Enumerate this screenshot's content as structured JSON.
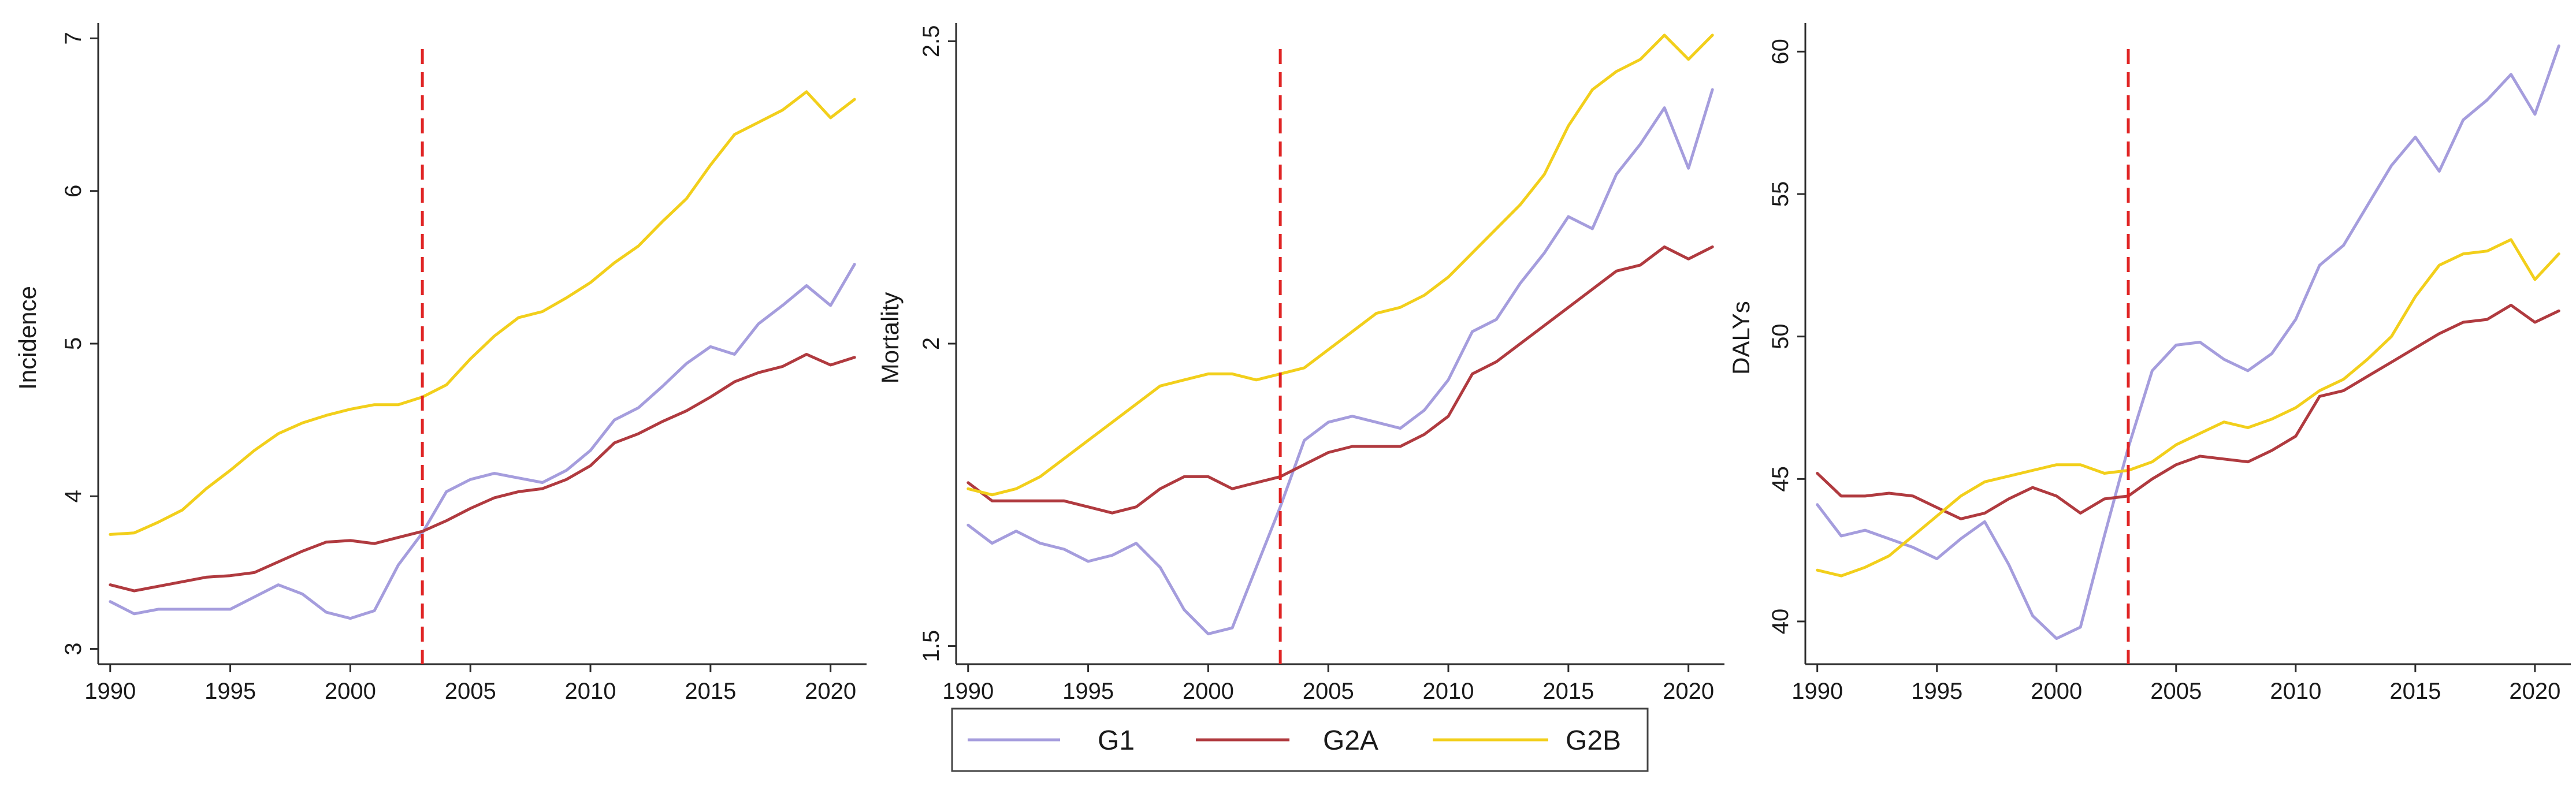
{
  "chart_data": [
    {
      "type": "line",
      "ylabel": "Incidence",
      "xlabel": "",
      "x": [
        1990,
        1991,
        1992,
        1993,
        1994,
        1995,
        1996,
        1997,
        1998,
        1999,
        2000,
        2001,
        2002,
        2003,
        2004,
        2005,
        2006,
        2007,
        2008,
        2009,
        2010,
        2011,
        2012,
        2013,
        2014,
        2015,
        2016,
        2017,
        2018,
        2019,
        2020,
        2021
      ],
      "xlim": [
        1989.5,
        2021.5
      ],
      "ylim": [
        2.9,
        7.1
      ],
      "xticks": [
        "1990",
        "1995",
        "2000",
        "2005",
        "2010",
        "2015",
        "2020"
      ],
      "yticks": [
        "3",
        "4",
        "5",
        "6",
        "7"
      ],
      "vline_x": 2003,
      "series": [
        {
          "name": "G1",
          "values": [
            3.31,
            3.23,
            3.26,
            3.26,
            3.26,
            3.26,
            3.34,
            3.42,
            3.36,
            3.24,
            3.2,
            3.25,
            3.55,
            3.76,
            4.03,
            4.11,
            4.15,
            4.12,
            4.09,
            4.17,
            4.3,
            4.5,
            4.58,
            4.72,
            4.87,
            4.98,
            4.93,
            5.13,
            5.25,
            5.38,
            5.25,
            5.52
          ]
        },
        {
          "name": "G2A",
          "values": [
            3.42,
            3.38,
            3.41,
            3.44,
            3.47,
            3.48,
            3.5,
            3.57,
            3.64,
            3.7,
            3.71,
            3.69,
            3.73,
            3.77,
            3.84,
            3.92,
            3.99,
            4.03,
            4.05,
            4.11,
            4.2,
            4.35,
            4.41,
            4.49,
            4.56,
            4.65,
            4.75,
            4.81,
            4.85,
            4.93,
            4.86,
            4.91
          ]
        },
        {
          "name": "G2B",
          "values": [
            3.75,
            3.76,
            3.83,
            3.91,
            4.05,
            4.17,
            4.3,
            4.41,
            4.48,
            4.53,
            4.57,
            4.6,
            4.6,
            4.65,
            4.73,
            4.9,
            5.05,
            5.17,
            5.21,
            5.3,
            5.4,
            5.53,
            5.64,
            5.8,
            5.95,
            6.17,
            6.37,
            6.45,
            6.53,
            6.65,
            6.48,
            6.6
          ]
        }
      ]
    },
    {
      "type": "line",
      "ylabel": "Mortality",
      "xlabel": "",
      "x": [
        1990,
        1991,
        1992,
        1993,
        1994,
        1995,
        1996,
        1997,
        1998,
        1999,
        2000,
        2001,
        2002,
        2003,
        2004,
        2005,
        2006,
        2007,
        2008,
        2009,
        2010,
        2011,
        2012,
        2013,
        2014,
        2015,
        2016,
        2017,
        2018,
        2019,
        2020,
        2021
      ],
      "xlim": [
        1989.5,
        2021.5
      ],
      "ylim": [
        1.47,
        2.53
      ],
      "xticks": [
        "1990",
        "1995",
        "2000",
        "2005",
        "2010",
        "2015",
        "2020"
      ],
      "yticks": [
        "1.5",
        "2",
        "2.5"
      ],
      "vline_x": 2003,
      "series": [
        {
          "name": "G1",
          "values": [
            1.7,
            1.67,
            1.69,
            1.67,
            1.66,
            1.64,
            1.65,
            1.67,
            1.63,
            1.56,
            1.52,
            1.53,
            1.63,
            1.73,
            1.84,
            1.87,
            1.88,
            1.87,
            1.86,
            1.89,
            1.94,
            2.02,
            2.04,
            2.1,
            2.15,
            2.21,
            2.19,
            2.28,
            2.33,
            2.39,
            2.29,
            2.42
          ]
        },
        {
          "name": "G2A",
          "values": [
            1.77,
            1.74,
            1.74,
            1.74,
            1.74,
            1.73,
            1.72,
            1.73,
            1.76,
            1.78,
            1.78,
            1.76,
            1.77,
            1.78,
            1.8,
            1.82,
            1.83,
            1.83,
            1.83,
            1.85,
            1.88,
            1.95,
            1.97,
            2.0,
            2.03,
            2.06,
            2.09,
            2.12,
            2.13,
            2.16,
            2.14,
            2.16
          ]
        },
        {
          "name": "G2B",
          "values": [
            1.76,
            1.75,
            1.76,
            1.78,
            1.81,
            1.84,
            1.87,
            1.9,
            1.93,
            1.94,
            1.95,
            1.95,
            1.94,
            1.95,
            1.96,
            1.99,
            2.02,
            2.05,
            2.06,
            2.08,
            2.11,
            2.15,
            2.19,
            2.23,
            2.28,
            2.36,
            2.42,
            2.45,
            2.47,
            2.51,
            2.47,
            2.51
          ]
        }
      ]
    },
    {
      "type": "line",
      "ylabel": "DALYs",
      "xlabel": "",
      "x": [
        1990,
        1991,
        1992,
        1993,
        1994,
        1995,
        1996,
        1997,
        1998,
        1999,
        2000,
        2001,
        2002,
        2003,
        2004,
        2005,
        2006,
        2007,
        2008,
        2009,
        2010,
        2011,
        2012,
        2013,
        2014,
        2015,
        2016,
        2017,
        2018,
        2019,
        2020,
        2021
      ],
      "xlim": [
        1989.5,
        2021.5
      ],
      "ylim": [
        38.5,
        61.0
      ],
      "xticks": [
        "1990",
        "1995",
        "2000",
        "2005",
        "2010",
        "2015",
        "2020"
      ],
      "yticks": [
        "40",
        "45",
        "50",
        "55",
        "60"
      ],
      "vline_x": 2003,
      "series": [
        {
          "name": "G1",
          "values": [
            44.1,
            43.0,
            43.2,
            42.9,
            42.6,
            42.2,
            42.9,
            43.5,
            42.0,
            40.2,
            39.4,
            39.8,
            43.0,
            46.1,
            48.8,
            49.7,
            49.8,
            49.2,
            48.8,
            49.4,
            50.6,
            52.5,
            53.2,
            54.6,
            56.0,
            57.0,
            55.8,
            57.6,
            58.3,
            59.2,
            57.8,
            60.2
          ]
        },
        {
          "name": "G2A",
          "values": [
            45.2,
            44.4,
            44.4,
            44.5,
            44.4,
            44.0,
            43.6,
            43.8,
            44.3,
            44.7,
            44.4,
            43.8,
            44.3,
            44.4,
            45.0,
            45.5,
            45.8,
            45.7,
            45.6,
            46.0,
            46.5,
            47.9,
            48.1,
            48.6,
            49.1,
            49.6,
            50.1,
            50.5,
            50.6,
            51.1,
            50.5,
            50.9
          ]
        },
        {
          "name": "G2B",
          "values": [
            41.8,
            41.6,
            41.9,
            42.3,
            43.0,
            43.7,
            44.4,
            44.9,
            45.1,
            45.3,
            45.5,
            45.5,
            45.2,
            45.3,
            45.6,
            46.2,
            46.6,
            47.0,
            46.8,
            47.1,
            47.5,
            48.1,
            48.5,
            49.2,
            50.0,
            51.4,
            52.5,
            52.9,
            53.0,
            53.4,
            52.0,
            52.9
          ]
        }
      ]
    }
  ],
  "legend": {
    "items": [
      {
        "name": "G1",
        "color": "#a59ddd"
      },
      {
        "name": "G2A",
        "color": "#b03a3f"
      },
      {
        "name": "G2B",
        "color": "#f2cf1b"
      }
    ]
  },
  "colors": {
    "G1": "#a59ddd",
    "G2A": "#b03a3f",
    "G2B": "#f2cf1b",
    "vline": "#e02424",
    "axis": "#2b2b2b"
  }
}
